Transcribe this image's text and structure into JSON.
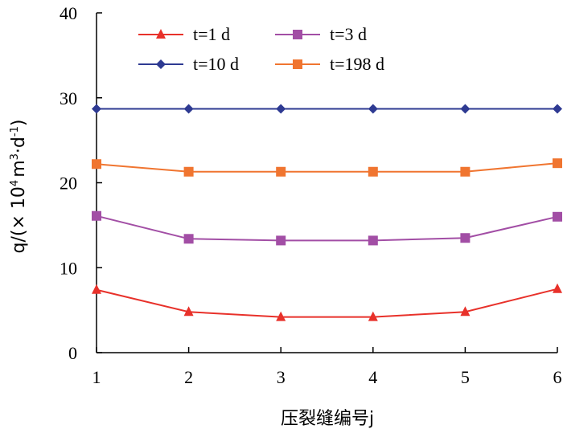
{
  "chart_data": {
    "type": "line",
    "title": "",
    "xlabel": "压裂缝编号j",
    "ylabel": {
      "prefix": "q/(× 10",
      "exp1": "4",
      "mid1": "m",
      "exp2": "3",
      "mid2": "·d",
      "exp3": "-1",
      "suffix": ")"
    },
    "x": [
      1,
      2,
      3,
      4,
      5,
      6
    ],
    "xlim": [
      1,
      6
    ],
    "ylim": [
      0,
      40
    ],
    "yticks": [
      0,
      10,
      20,
      30,
      40
    ],
    "grid": false,
    "legend_position": "top",
    "series": [
      {
        "name": "t=1 d",
        "color": "#e8312a",
        "marker": "triangle",
        "values": [
          7.4,
          4.8,
          4.2,
          4.2,
          4.8,
          7.5
        ]
      },
      {
        "name": "t=3 d",
        "color": "#a24ea5",
        "marker": "square",
        "values": [
          16.1,
          13.4,
          13.2,
          13.2,
          13.5,
          16.0
        ]
      },
      {
        "name": "t=10 d",
        "color": "#2e3a92",
        "marker": "diamond",
        "values": [
          28.7,
          28.7,
          28.7,
          28.7,
          28.7,
          28.7
        ]
      },
      {
        "name": "t=198 d",
        "color": "#f07530",
        "marker": "square",
        "values": [
          22.2,
          21.3,
          21.3,
          21.3,
          21.3,
          22.3
        ]
      }
    ]
  }
}
